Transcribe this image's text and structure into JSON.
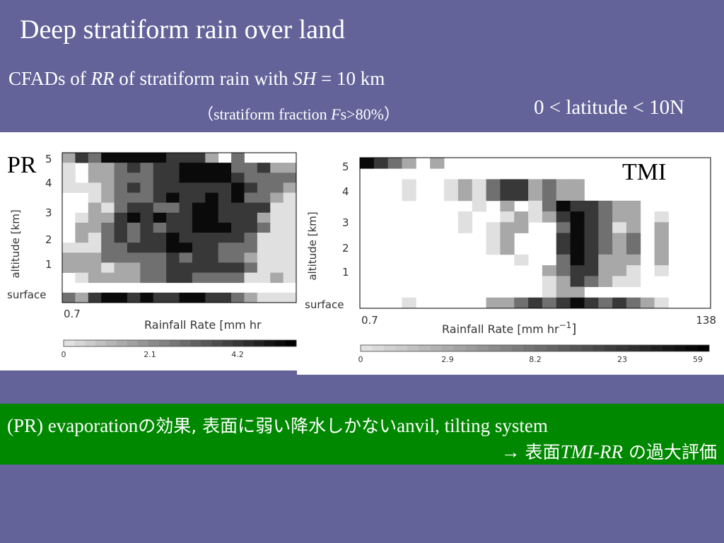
{
  "slide": {
    "title": "Deep stratiform rain over land",
    "subtitle_a": "CFADs of ",
    "subtitle_rr": "RR",
    "subtitle_b": " of stratiform rain with ",
    "subtitle_sh": "SH",
    "subtitle_c": " = 10 km",
    "subtitle2_a": "（stratiform fraction ",
    "subtitle2_f": "F",
    "subtitle2_b": "s>80%）",
    "latitude": "0 < latitude < 10N",
    "note1_a": "(PR) evaporation",
    "note1_jp": "の効果, 表面に弱い降水しかない",
    "note1_b": "anvil, tilting system",
    "note2_a": "→  ",
    "note2_jp1": "表面",
    "note2_it": "TMI-RR",
    "note2_jp2": " の過大評価",
    "colors": {
      "background": "#636399",
      "note_band": "#008800"
    }
  },
  "chart_data": [
    {
      "type": "heatmap",
      "panel": "PR",
      "tag": "PR",
      "xlabel": "Rainfall Rate [mm hr",
      "ylabel": "altitude [km]",
      "x_tick_left": "0.7",
      "y_ticks": [
        "5",
        "4",
        "3",
        "2",
        "1",
        "surface"
      ],
      "colorbar_ticks": [
        "0",
        "2.1",
        "4.2"
      ],
      "colorbar_range": [
        0,
        4.2
      ],
      "grid": [
        [
          2,
          4,
          3,
          5,
          5,
          5,
          5,
          5,
          4,
          4,
          4,
          2,
          0,
          3,
          0,
          0,
          0,
          0
        ],
        [
          1,
          0,
          2,
          2,
          3,
          4,
          3,
          4,
          4,
          5,
          5,
          5,
          5,
          3,
          3,
          4,
          2,
          2
        ],
        [
          1,
          0,
          2,
          2,
          3,
          3,
          3,
          4,
          4,
          5,
          5,
          5,
          5,
          4,
          3,
          3,
          3,
          3
        ],
        [
          1,
          1,
          1,
          2,
          3,
          4,
          3,
          4,
          4,
          4,
          4,
          4,
          4,
          5,
          4,
          3,
          3,
          2
        ],
        [
          0,
          0,
          1,
          2,
          3,
          3,
          3,
          4,
          5,
          4,
          4,
          5,
          4,
          5,
          3,
          3,
          2,
          1
        ],
        [
          0,
          0,
          2,
          1,
          3,
          4,
          4,
          3,
          3,
          4,
          5,
          5,
          4,
          4,
          4,
          4,
          1,
          1
        ],
        [
          0,
          1,
          2,
          2,
          4,
          5,
          4,
          5,
          4,
          4,
          5,
          5,
          4,
          4,
          4,
          2,
          1,
          1
        ],
        [
          0,
          2,
          2,
          3,
          4,
          3,
          4,
          3,
          4,
          4,
          5,
          5,
          5,
          4,
          4,
          3,
          1,
          1
        ],
        [
          0,
          2,
          1,
          3,
          4,
          3,
          4,
          4,
          5,
          4,
          4,
          4,
          4,
          4,
          3,
          1,
          1,
          1
        ],
        [
          1,
          1,
          1,
          3,
          3,
          4,
          4,
          4,
          5,
          5,
          4,
          4,
          3,
          3,
          3,
          1,
          1,
          1
        ],
        [
          2,
          2,
          2,
          3,
          3,
          3,
          3,
          3,
          4,
          3,
          4,
          4,
          3,
          3,
          2,
          1,
          1,
          1
        ],
        [
          2,
          2,
          2,
          1,
          2,
          2,
          3,
          3,
          4,
          4,
          4,
          4,
          4,
          4,
          3,
          1,
          1,
          1
        ],
        [
          0,
          1,
          2,
          2,
          2,
          2,
          3,
          3,
          4,
          4,
          3,
          3,
          3,
          3,
          1,
          1,
          2,
          1
        ],
        [
          0,
          0,
          0,
          0,
          0,
          0,
          0,
          0,
          0,
          0,
          0,
          0,
          0,
          0,
          0,
          0,
          0,
          0
        ],
        [
          3,
          2,
          4,
          5,
          5,
          4,
          5,
          4,
          4,
          5,
          5,
          4,
          4,
          3,
          2,
          1,
          1,
          1
        ]
      ]
    },
    {
      "type": "heatmap",
      "panel": "TMI",
      "tag": "TMI",
      "xlabel": "Rainfall Rate [mm hr",
      "xlabel_sup": "−1",
      "xlabel_end": "]",
      "ylabel": "altitude [km]",
      "x_tick_left": "0.7",
      "x_tick_right": "138",
      "y_ticks": [
        "5",
        "4",
        "3",
        "2",
        "1",
        "surface"
      ],
      "colorbar_ticks": [
        "0",
        "2.9",
        "8.2",
        "23",
        "59"
      ],
      "grid": [
        [
          5,
          4,
          3,
          2,
          0,
          2,
          0,
          0,
          0,
          0,
          0,
          0,
          0,
          0,
          0,
          0,
          0,
          0,
          0,
          0,
          0,
          0,
          0,
          0,
          0
        ],
        [
          0,
          0,
          0,
          0,
          0,
          0,
          0,
          0,
          0,
          0,
          0,
          0,
          0,
          0,
          0,
          0,
          0,
          0,
          0,
          0,
          0,
          0,
          0,
          0,
          0
        ],
        [
          0,
          0,
          0,
          1,
          0,
          0,
          1,
          2,
          1,
          3,
          4,
          4,
          2,
          3,
          2,
          2,
          0,
          0,
          0,
          0,
          0,
          0,
          0,
          0,
          0
        ],
        [
          0,
          0,
          0,
          1,
          0,
          0,
          1,
          2,
          1,
          3,
          4,
          4,
          2,
          3,
          2,
          2,
          0,
          0,
          0,
          0,
          0,
          0,
          0,
          0,
          0
        ],
        [
          0,
          0,
          0,
          0,
          0,
          0,
          0,
          0,
          1,
          0,
          2,
          0,
          1,
          3,
          5,
          4,
          4,
          3,
          2,
          2,
          0,
          0,
          0,
          0,
          0
        ],
        [
          0,
          0,
          0,
          0,
          0,
          0,
          0,
          1,
          0,
          0,
          1,
          2,
          1,
          2,
          4,
          5,
          4,
          3,
          2,
          2,
          0,
          1,
          0,
          0,
          0
        ],
        [
          0,
          0,
          0,
          0,
          0,
          0,
          0,
          1,
          0,
          1,
          2,
          2,
          0,
          0,
          3,
          5,
          4,
          3,
          1,
          2,
          0,
          2,
          0,
          0,
          0
        ],
        [
          0,
          0,
          0,
          0,
          0,
          0,
          0,
          0,
          0,
          1,
          2,
          0,
          0,
          0,
          4,
          5,
          4,
          3,
          2,
          3,
          0,
          2,
          0,
          0,
          0
        ],
        [
          0,
          0,
          0,
          0,
          0,
          0,
          0,
          0,
          0,
          1,
          2,
          0,
          0,
          0,
          4,
          5,
          4,
          3,
          2,
          3,
          0,
          2,
          0,
          0,
          0
        ],
        [
          0,
          0,
          0,
          0,
          0,
          0,
          0,
          0,
          0,
          0,
          0,
          1,
          0,
          0,
          3,
          5,
          4,
          2,
          2,
          2,
          0,
          2,
          0,
          0,
          0
        ],
        [
          0,
          0,
          0,
          0,
          0,
          0,
          0,
          0,
          0,
          0,
          0,
          0,
          0,
          2,
          3,
          4,
          4,
          2,
          2,
          1,
          0,
          1,
          0,
          0,
          0
        ],
        [
          0,
          0,
          0,
          0,
          0,
          0,
          0,
          0,
          0,
          0,
          0,
          0,
          0,
          1,
          2,
          4,
          3,
          2,
          1,
          1,
          0,
          0,
          0,
          0,
          0
        ],
        [
          0,
          0,
          0,
          0,
          0,
          0,
          0,
          0,
          0,
          0,
          0,
          0,
          0,
          1,
          2,
          2,
          0,
          0,
          0,
          0,
          0,
          0,
          0,
          0,
          0
        ],
        [
          0,
          0,
          0,
          1,
          0,
          0,
          0,
          0,
          0,
          2,
          2,
          3,
          4,
          3,
          4,
          5,
          4,
          3,
          4,
          3,
          2,
          1,
          0,
          0,
          0
        ]
      ]
    }
  ]
}
